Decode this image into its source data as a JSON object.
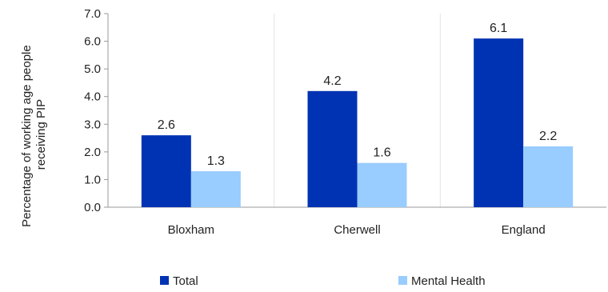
{
  "chart_data": {
    "type": "bar",
    "title": "",
    "xlabel": "",
    "ylabel": "Percentage of working age people receiving PIP",
    "categories": [
      "Bloxham",
      "Cherwell",
      "England"
    ],
    "series": [
      {
        "name": "Total",
        "values": [
          2.6,
          4.2,
          6.1
        ],
        "color": "#0033b3"
      },
      {
        "name": "Mental Health",
        "values": [
          1.3,
          1.6,
          2.2
        ],
        "color": "#99ccff"
      }
    ],
    "ylim": [
      0,
      7
    ],
    "yticks": [
      "0.0",
      "1.0",
      "2.0",
      "3.0",
      "4.0",
      "5.0",
      "6.0",
      "7.0"
    ],
    "grid": "vertical separators between categories",
    "legend_position": "bottom"
  },
  "ylabel_lines": [
    "Percentage of working age people",
    "receiving PIP"
  ]
}
